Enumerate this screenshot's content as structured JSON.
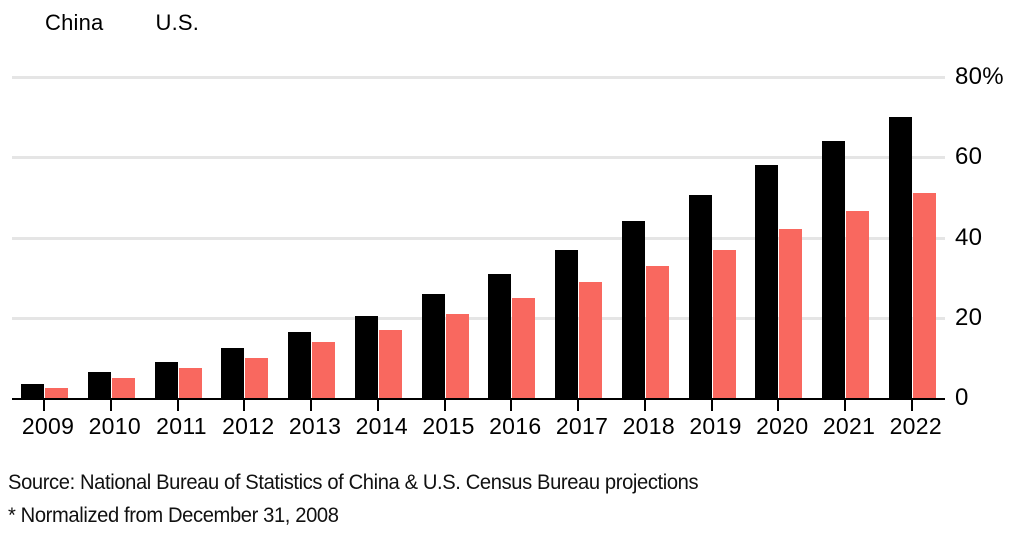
{
  "legend": {
    "items": [
      "China",
      "U.S."
    ]
  },
  "chart_data": {
    "type": "bar",
    "title": "",
    "xlabel": "",
    "ylabel": "",
    "legend_position": "top-left",
    "grid": true,
    "categories": [
      "2009",
      "2010",
      "2011",
      "2012",
      "2013",
      "2014",
      "2015",
      "2016",
      "2017",
      "2018",
      "2019",
      "2020",
      "2021",
      "2022"
    ],
    "series": [
      {
        "name": "China",
        "color": "#000000",
        "values": [
          3.5,
          6.5,
          9,
          12.5,
          16.5,
          20.5,
          26,
          31,
          37,
          44,
          50.5,
          58,
          64,
          70
        ]
      },
      {
        "name": "U.S.",
        "color": "#f9685f",
        "values": [
          2.5,
          5,
          7.5,
          10,
          14,
          17,
          21,
          25,
          29,
          33,
          37,
          42,
          46.5,
          51
        ]
      }
    ],
    "ylim": [
      0,
      80
    ],
    "yticks": [
      {
        "value": 0,
        "label": "0"
      },
      {
        "value": 20,
        "label": "20"
      },
      {
        "value": 40,
        "label": "40"
      },
      {
        "value": 60,
        "label": "60"
      },
      {
        "value": 80,
        "label": "80%"
      }
    ],
    "colors": {
      "gridline": "#e5e5e5",
      "axis": "#000000",
      "text": "#000000"
    }
  },
  "footer": {
    "source_line": "Source: National Bureau of Statistics of China & U.S. Census Bureau projections",
    "note_line": "* Normalized from December 31, 2008"
  }
}
